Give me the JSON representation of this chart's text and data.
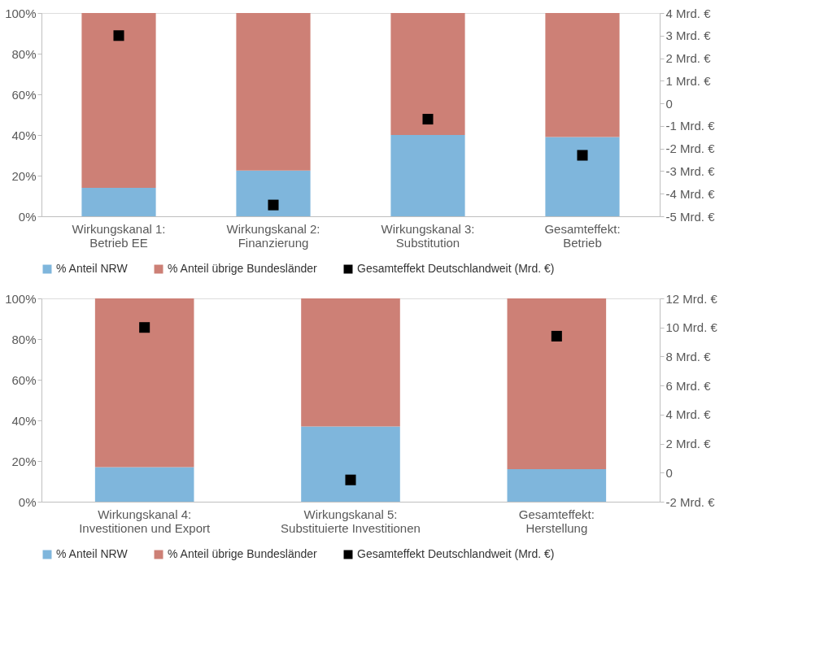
{
  "chart_data": [
    {
      "type": "bar",
      "stacked": true,
      "categories": [
        "Wirkungskanal 1:\nBetrieb EE",
        "Wirkungskanal 2:\nFinanzierung",
        "Wirkungskanal 3:\nSubstitution",
        "Gesamteffekt:\nBetrieb"
      ],
      "series": [
        {
          "name": "% Anteil NRW",
          "color": "#7fb6dc",
          "values": [
            14,
            22.5,
            40,
            39
          ]
        },
        {
          "name": "% Anteil übrige Bundesländer",
          "color": "#cd8076",
          "values": [
            86,
            77.5,
            60,
            61
          ]
        },
        {
          "name": "Gesamteffekt Deutschlandweit (Mrd. €)",
          "type": "scatter",
          "axis": "y2",
          "marker": "square",
          "color": "#000000",
          "values": [
            3.0,
            -4.5,
            -0.7,
            -2.3
          ]
        }
      ],
      "ylim": [
        0,
        100
      ],
      "yticks": [
        {
          "value": 0,
          "label": "0%"
        },
        {
          "value": 20,
          "label": "20%"
        },
        {
          "value": 40,
          "label": "40%"
        },
        {
          "value": 60,
          "label": "60%"
        },
        {
          "value": 80,
          "label": "80%"
        },
        {
          "value": 100,
          "label": "100%"
        }
      ],
      "y2lim": [
        -5,
        4
      ],
      "y2ticks": [
        {
          "value": 4,
          "label": "4 Mrd. €"
        },
        {
          "value": 3,
          "label": "3 Mrd. €"
        },
        {
          "value": 2,
          "label": "2 Mrd. €"
        },
        {
          "value": 1,
          "label": "1 Mrd. €"
        },
        0,
        {
          "value": -1,
          "label": "-1 Mrd. €"
        },
        {
          "value": -2,
          "label": "-2 Mrd. €"
        },
        {
          "value": -3,
          "label": "-3 Mrd. €"
        },
        {
          "value": -4,
          "label": "-4 Mrd. €"
        },
        {
          "value": -5,
          "label": "-5 Mrd. €"
        }
      ],
      "grid": false,
      "legend": "bottom"
    },
    {
      "type": "bar",
      "stacked": true,
      "categories": [
        "Wirkungskanal 4:\nInvestitionen und Export",
        "Wirkungskanal 5:\nSubstituierte Investitionen",
        "Gesamteffekt:\nHerstellung"
      ],
      "series": [
        {
          "name": "% Anteil NRW",
          "color": "#7fb6dc",
          "values": [
            17,
            37,
            16
          ]
        },
        {
          "name": "% Anteil übrige Bundesländer",
          "color": "#cd8076",
          "values": [
            83,
            63,
            84
          ]
        },
        {
          "name": "Gesamteffekt Deutschlandweit (Mrd. €)",
          "type": "scatter",
          "axis": "y2",
          "marker": "square",
          "color": "#000000",
          "values": [
            10.0,
            -0.5,
            9.4
          ]
        }
      ],
      "ylim": [
        0,
        100
      ],
      "yticks": [
        {
          "value": 0,
          "label": "0%"
        },
        {
          "value": 20,
          "label": "20%"
        },
        {
          "value": 40,
          "label": "40%"
        },
        {
          "value": 60,
          "label": "60%"
        },
        {
          "value": 80,
          "label": "80%"
        },
        {
          "value": 100,
          "label": "100%"
        }
      ],
      "y2lim": [
        -2,
        12
      ],
      "y2ticks": [
        {
          "value": 12,
          "label": "12 Mrd. €"
        },
        {
          "value": 10,
          "label": "10 Mrd. €"
        },
        {
          "value": 8,
          "label": "8 Mrd. €"
        },
        {
          "value": 6,
          "label": "6 Mrd. €"
        },
        {
          "value": 4,
          "label": "4 Mrd. €"
        },
        {
          "value": 2,
          "label": "2 Mrd. €"
        },
        0,
        {
          "value": -2,
          "label": "-2 Mrd. €"
        }
      ],
      "grid": false,
      "legend": "bottom"
    }
  ]
}
